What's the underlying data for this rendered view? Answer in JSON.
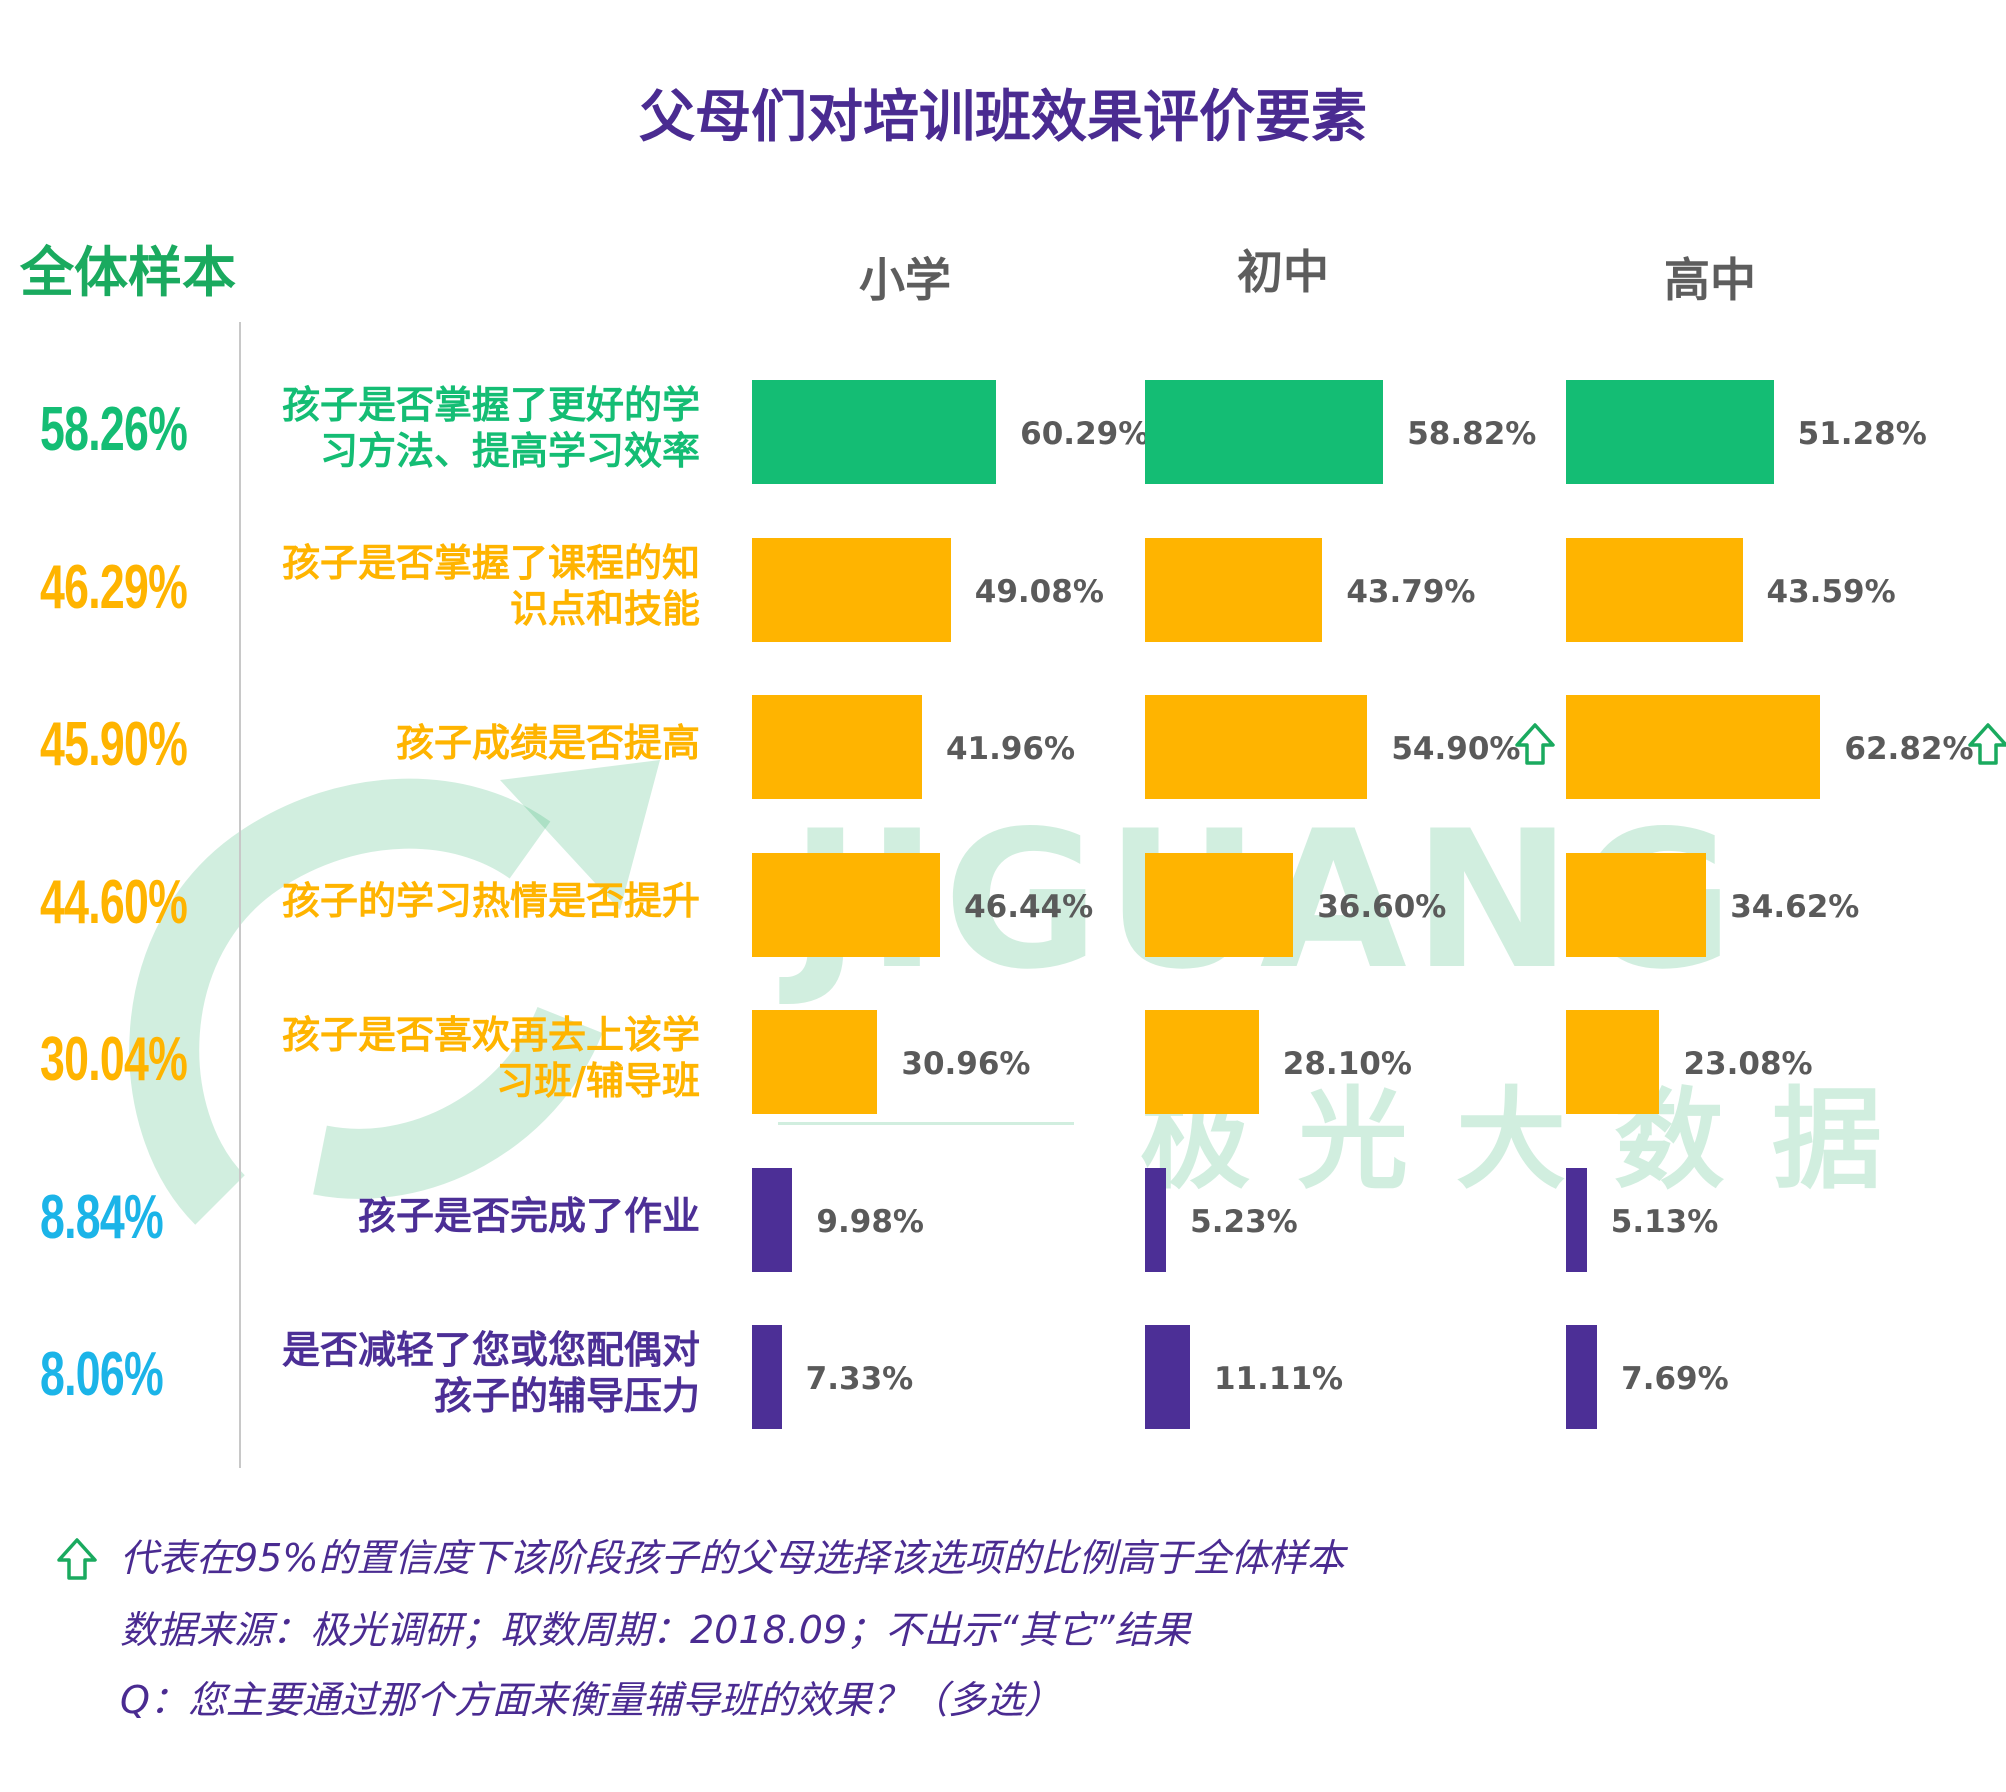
{
  "title": "父母们对培训班效果评价要素",
  "overall_heading": "全体样本",
  "columns": [
    "小学",
    "初中",
    "高中"
  ],
  "colors": {
    "green": "#14bd74",
    "orange": "#ffb400",
    "purple": "#4c2f96",
    "cyan": "#1bb4e8",
    "title": "#4a2b91",
    "heading_green": "#1aaa5f",
    "up_arrow": "#1aaa5f"
  },
  "chart_data": {
    "type": "bar",
    "orientation": "horizontal",
    "categories": [
      "孩子是否掌握了更好的学习方法、提高学习效率",
      "孩子是否掌握了课程的知识点和技能",
      "孩子成绩是否提高",
      "孩子的学习热情是否提升",
      "孩子是否喜欢再去上该学习班/辅导班",
      "孩子是否完成了作业",
      "是否减轻了您或您配偶对孩子的辅导压力"
    ],
    "label_lines": [
      [
        "孩子是否掌握了更好的学",
        "习方法、提高学习效率"
      ],
      [
        "孩子是否掌握了课程的知",
        "识点和技能"
      ],
      [
        "孩子成绩是否提高"
      ],
      [
        "孩子的学习热情是否提升"
      ],
      [
        "孩子是否喜欢再去上该学",
        "习班/辅导班"
      ],
      [
        "孩子是否完成了作业"
      ],
      [
        "是否减轻了您或您配偶对",
        "孩子的辅导压力"
      ]
    ],
    "overall": [
      "58.26%",
      "46.29%",
      "45.90%",
      "44.60%",
      "30.04%",
      "8.84%",
      "8.06%"
    ],
    "row_colors": [
      "green",
      "orange",
      "orange",
      "orange",
      "orange",
      "purple",
      "purple"
    ],
    "overall_colors": [
      "green",
      "orange",
      "orange",
      "orange",
      "orange",
      "cyan",
      "cyan"
    ],
    "series": [
      {
        "name": "小学",
        "values": [
          60.29,
          49.08,
          41.96,
          46.44,
          30.96,
          9.98,
          7.33
        ],
        "labels": [
          "60.29%",
          "49.08%",
          "41.96%",
          "46.44%",
          "30.96%",
          "9.98%",
          "7.33%"
        ],
        "up": [
          false,
          false,
          false,
          false,
          false,
          false,
          false
        ]
      },
      {
        "name": "初中",
        "values": [
          58.82,
          43.79,
          54.9,
          36.6,
          28.1,
          5.23,
          11.11
        ],
        "labels": [
          "58.82%",
          "43.79%",
          "54.90%",
          "36.60%",
          "28.10%",
          "5.23%",
          "11.11%"
        ],
        "up": [
          false,
          false,
          true,
          false,
          false,
          false,
          false
        ]
      },
      {
        "name": "高中",
        "values": [
          51.28,
          43.59,
          62.82,
          34.62,
          23.08,
          5.13,
          7.69
        ],
        "labels": [
          "51.28%",
          "43.59%",
          "62.82%",
          "34.62%",
          "23.08%",
          "5.13%",
          "7.69%"
        ],
        "up": [
          false,
          false,
          true,
          false,
          false,
          false,
          false
        ]
      }
    ]
  },
  "watermark": {
    "brand": "JIGUANG",
    "brand_cn": "极光大数据",
    "icon": "jiguang-logo-icon"
  },
  "notes": {
    "icon": "up-arrow-icon",
    "legend": "代表在95%的置信度下该阶段孩子的父母选择该选项的比例高于全体样本",
    "source": "数据来源：极光调研；取数周期：2018.09；不出示“其它”结果",
    "question": "Q：您主要通过那个方面来衡量辅导班的效果？（多选）"
  }
}
